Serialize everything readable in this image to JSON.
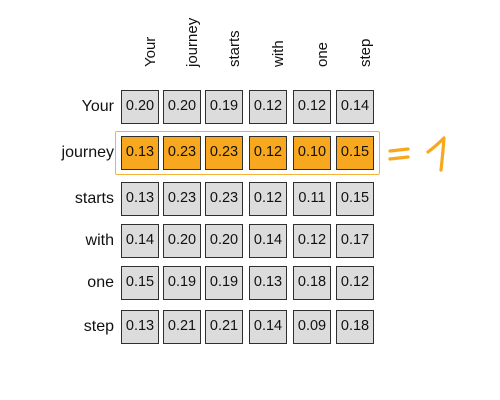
{
  "columns": [
    "Your",
    "journey",
    "starts",
    "with",
    "one",
    "step"
  ],
  "rows": [
    {
      "label": "Your",
      "values": [
        "0.20",
        "0.20",
        "0.19",
        "0.12",
        "0.12",
        "0.14"
      ]
    },
    {
      "label": "journey",
      "values": [
        "0.13",
        "0.23",
        "0.23",
        "0.12",
        "0.10",
        "0.15"
      ]
    },
    {
      "label": "starts",
      "values": [
        "0.13",
        "0.23",
        "0.23",
        "0.12",
        "0.11",
        "0.15"
      ]
    },
    {
      "label": "with",
      "values": [
        "0.14",
        "0.20",
        "0.20",
        "0.14",
        "0.12",
        "0.17"
      ]
    },
    {
      "label": "one",
      "values": [
        "0.15",
        "0.19",
        "0.19",
        "0.13",
        "0.18",
        "0.12"
      ]
    },
    {
      "label": "step",
      "values": [
        "0.13",
        "0.21",
        "0.21",
        "0.14",
        "0.09",
        "0.18"
      ]
    }
  ],
  "highlighted_row": "journey",
  "annotation": {
    "sum_value": "1"
  },
  "colors": {
    "cell": "#dcdcdc",
    "highlight": "#f7a81e",
    "annotation": "#f7a81e"
  }
}
